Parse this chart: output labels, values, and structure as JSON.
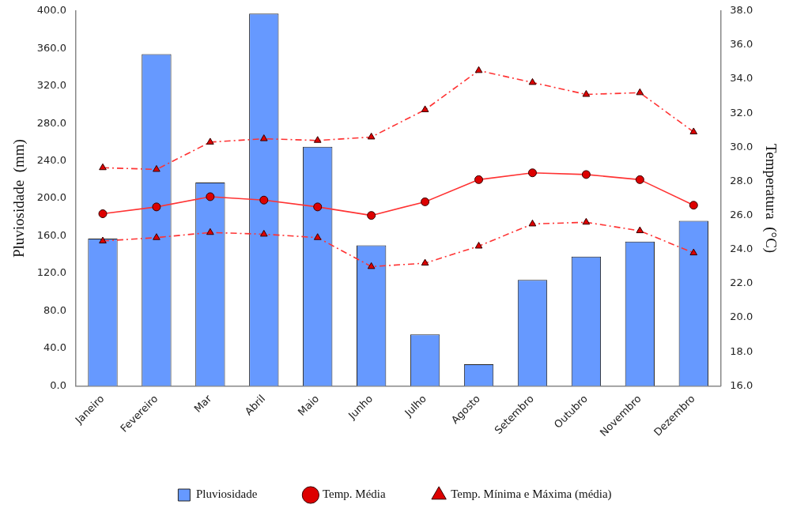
{
  "chart_data": {
    "type": "bar",
    "ylabel": "Pluviosidade  (mm)",
    "y2label": "Temperatura  (°C)",
    "categories": [
      "Janeiro",
      "Fevereiro",
      "Mar",
      "Abril",
      "Maio",
      "Junho",
      "Julho",
      "Agosto",
      "Setembro",
      "Outubro",
      "Novembro",
      "Dezembro"
    ],
    "series": [
      {
        "name": "Pluviosidade",
        "color": "#6699ff",
        "values": [
          157,
          354,
          217,
          397,
          255,
          150,
          55,
          23,
          113,
          138,
          154,
          176
        ]
      },
      {
        "name": "Temp. Média",
        "type": "line",
        "axis": "y2",
        "color": "#ff3333",
        "marker": "circle",
        "line_style": "solid",
        "values": [
          26.1,
          26.5,
          27.1,
          26.9,
          26.5,
          26.0,
          26.8,
          28.1,
          28.5,
          28.4,
          28.1,
          26.6
        ]
      },
      {
        "name": "Temp. Mínima e Máxima (média)",
        "type": "line",
        "axis": "y2",
        "color": "#ff3333",
        "marker": "triangle",
        "line_style": "dashdot",
        "values": [
          28.8,
          28.7,
          30.3,
          30.5,
          30.4,
          30.6,
          32.2,
          34.5,
          33.8,
          33.1,
          33.2,
          30.9
        ]
      },
      {
        "type": "line",
        "axis": "y2",
        "color": "#ff3333",
        "marker": "triangle",
        "line_style": "dashdot",
        "values": [
          24.5,
          24.7,
          25.0,
          24.9,
          24.7,
          23.0,
          23.2,
          24.2,
          25.5,
          25.6,
          25.1,
          23.8
        ]
      }
    ],
    "ylim": [
      0,
      400
    ],
    "yticks": [
      {
        "value": 0,
        "label": "0.0"
      },
      {
        "value": 40,
        "label": "40.0"
      },
      {
        "value": 80,
        "label": "80.0"
      },
      {
        "value": 120,
        "label": "120.0"
      },
      {
        "value": 160,
        "label": "160.0"
      },
      {
        "value": 200,
        "label": "200.0"
      },
      {
        "value": 240,
        "label": "240.0"
      },
      {
        "value": 280,
        "label": "280.0"
      },
      {
        "value": 320,
        "label": "320.0"
      },
      {
        "value": 360,
        "label": "360.0"
      },
      {
        "value": 400,
        "label": "400.0"
      }
    ],
    "y2lim": [
      16,
      38
    ],
    "y2ticks": [
      {
        "value": 16,
        "label": "16.0"
      },
      {
        "value": 18,
        "label": "18.0"
      },
      {
        "value": 20,
        "label": "20.0"
      },
      {
        "value": 22,
        "label": "22.0"
      },
      {
        "value": 24,
        "label": "24.0"
      },
      {
        "value": 26,
        "label": "26.0"
      },
      {
        "value": 28,
        "label": "28.0"
      },
      {
        "value": 30,
        "label": "30.0"
      },
      {
        "value": 32,
        "label": "32.0"
      },
      {
        "value": 34,
        "label": "34.0"
      },
      {
        "value": 36,
        "label": "36.0"
      },
      {
        "value": 38,
        "label": "38.0"
      }
    ],
    "grid": false,
    "legend": "bottom"
  }
}
